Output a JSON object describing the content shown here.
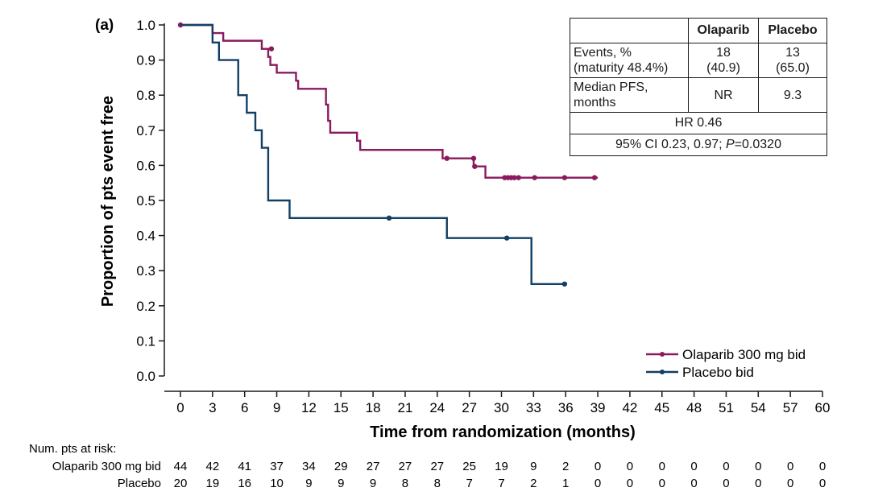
{
  "chart_data": {
    "type": "line",
    "panel_label": "(a)",
    "title": "",
    "xlabel": "Time from randomization (months)",
    "ylabel": "Proportion of pts event free",
    "xlim": [
      0,
      60
    ],
    "ylim": [
      0.0,
      1.0
    ],
    "x_ticks": [
      "0",
      "3",
      "6",
      "9",
      "12",
      "15",
      "18",
      "21",
      "24",
      "27",
      "30",
      "33",
      "36",
      "39",
      "42",
      "45",
      "48",
      "51",
      "54",
      "57",
      "60"
    ],
    "y_ticks": [
      "0.0",
      "0.1",
      "0.2",
      "0.3",
      "0.4",
      "0.5",
      "0.6",
      "0.7",
      "0.8",
      "0.9",
      "1.0"
    ],
    "series": [
      {
        "name": "Olaparib 300 mg bid",
        "color": "#8a1a5e",
        "steps": [
          [
            0,
            1.0
          ],
          [
            3,
            0.977
          ],
          [
            4,
            0.955
          ],
          [
            7.6,
            0.932
          ],
          [
            8.2,
            0.909
          ],
          [
            8.4,
            0.886
          ],
          [
            9,
            0.864
          ],
          [
            10.8,
            0.841
          ],
          [
            11,
            0.818
          ],
          [
            13.6,
            0.773
          ],
          [
            13.8,
            0.727
          ],
          [
            14,
            0.693
          ],
          [
            16.5,
            0.67
          ],
          [
            16.8,
            0.644
          ],
          [
            24.5,
            0.62
          ],
          [
            27.4,
            0.597
          ],
          [
            28.5,
            0.565
          ],
          [
            39,
            0.565
          ]
        ],
        "censored": [
          [
            0,
            1.0
          ],
          [
            8.5,
            0.932
          ],
          [
            24.9,
            0.62
          ],
          [
            27.4,
            0.62
          ],
          [
            27.5,
            0.597
          ],
          [
            30.3,
            0.565
          ],
          [
            30.6,
            0.565
          ],
          [
            30.9,
            0.565
          ],
          [
            31.2,
            0.565
          ],
          [
            31.6,
            0.565
          ],
          [
            33.1,
            0.565
          ],
          [
            35.9,
            0.565
          ],
          [
            38.7,
            0.565
          ]
        ]
      },
      {
        "name": "Placebo bid",
        "color": "#123f66",
        "steps": [
          [
            0,
            1.0
          ],
          [
            3,
            0.95
          ],
          [
            3.6,
            0.9
          ],
          [
            5.4,
            0.8
          ],
          [
            6.2,
            0.75
          ],
          [
            7,
            0.7
          ],
          [
            7.6,
            0.65
          ],
          [
            8.2,
            0.5
          ],
          [
            10.2,
            0.45
          ],
          [
            24.9,
            0.393
          ],
          [
            32.8,
            0.262
          ],
          [
            36,
            0.262
          ]
        ],
        "censored": [
          [
            19.5,
            0.45
          ],
          [
            30.5,
            0.393
          ],
          [
            35.9,
            0.262
          ]
        ]
      }
    ],
    "stats_table": {
      "col_headers": [
        "Olaparib",
        "Placebo"
      ],
      "events_label_line1": "Events, %",
      "events_label_line2": "(maturity 48.4%)",
      "events_olaparib_n": "18",
      "events_olaparib_pct": "(40.9)",
      "events_placebo_n": "13",
      "events_placebo_pct": "(65.0)",
      "pfs_label_line1": "Median PFS,",
      "pfs_label_line2": "months",
      "pfs_olaparib": "NR",
      "pfs_placebo": "9.3",
      "hr": "HR 0.46",
      "ci_prefix": "95% CI 0.23, 0.97; ",
      "ci_p": "P",
      "ci_suffix": "=0.0320"
    },
    "risk_table": {
      "title": "Num. pts at risk:",
      "rows": [
        {
          "label": "Olaparib 300 mg bid",
          "values": [
            "44",
            "42",
            "41",
            "37",
            "34",
            "29",
            "27",
            "27",
            "27",
            "25",
            "19",
            "9",
            "2",
            "0",
            "0",
            "0",
            "0",
            "0",
            "0",
            "0",
            "0"
          ]
        },
        {
          "label": "Placebo",
          "values": [
            "20",
            "19",
            "16",
            "10",
            "9",
            "9",
            "9",
            "8",
            "8",
            "7",
            "7",
            "2",
            "1",
            "0",
            "0",
            "0",
            "0",
            "0",
            "0",
            "0",
            "0"
          ]
        }
      ]
    }
  }
}
